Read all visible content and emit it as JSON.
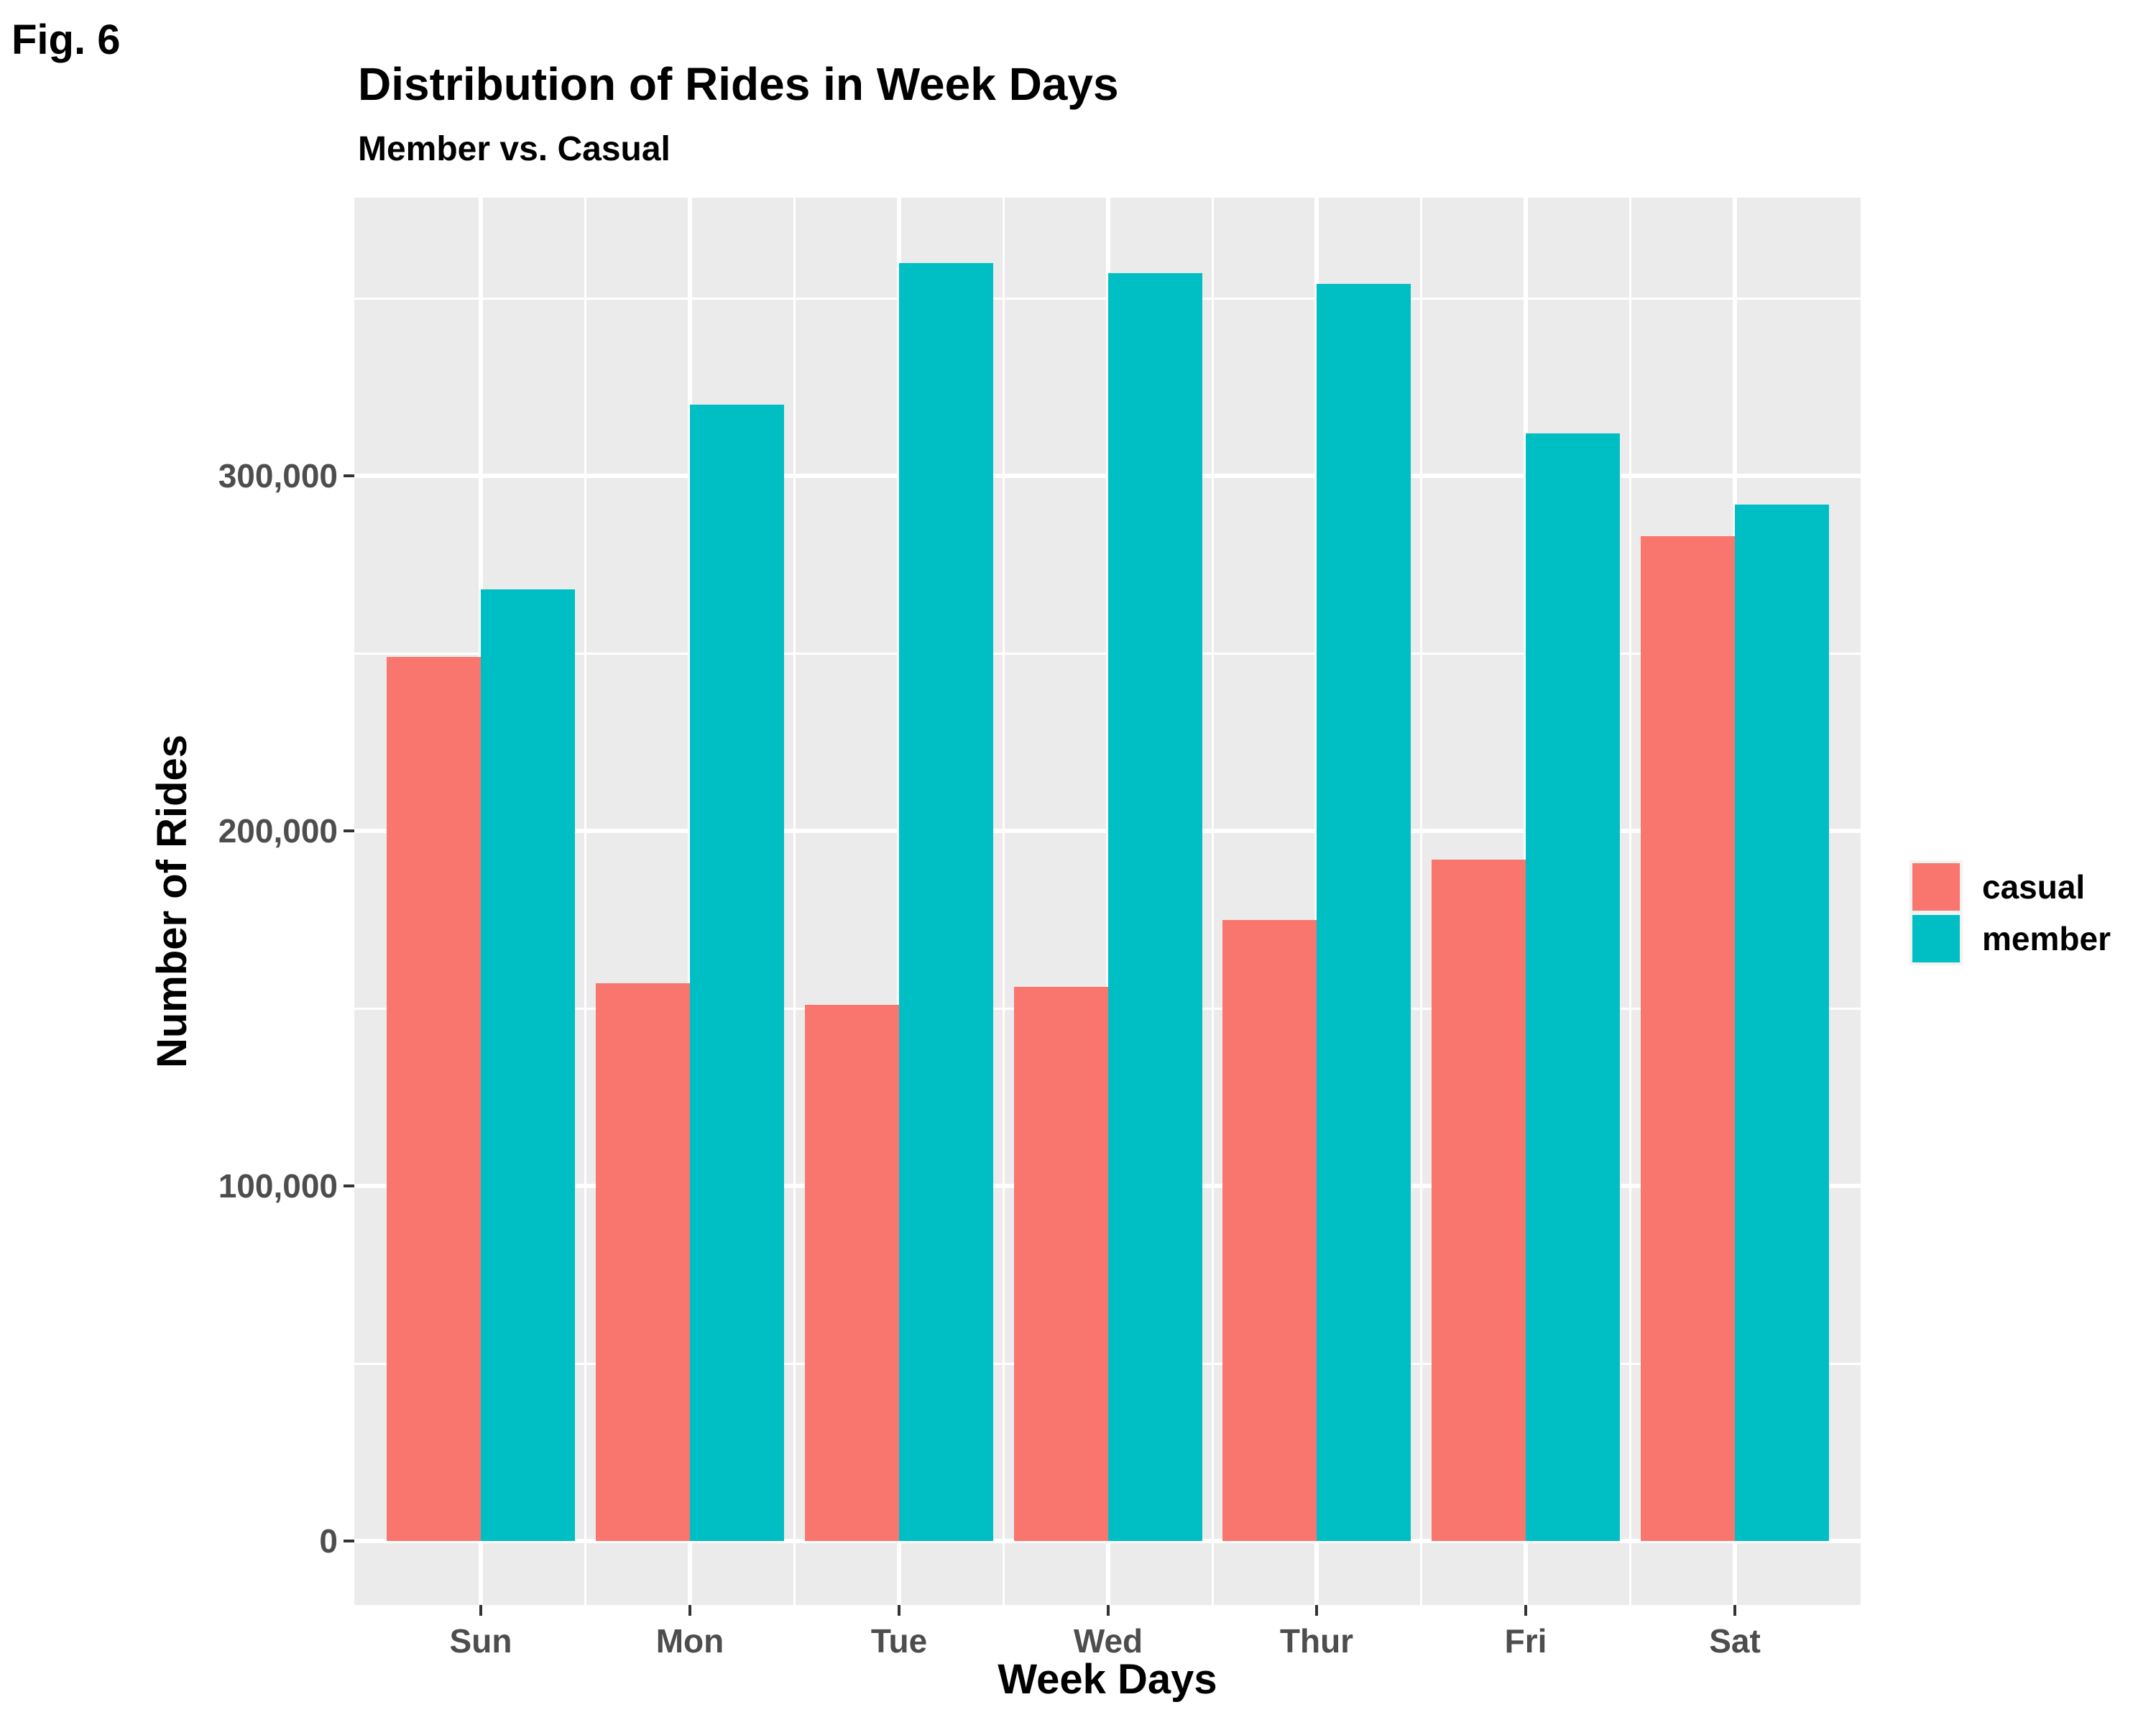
{
  "figure_label": "Fig. 6",
  "chart_data": {
    "type": "bar",
    "mode": "grouped",
    "title": "Distribution of Rides in Week Days",
    "subtitle": "Member vs. Casual",
    "xlabel": "Week Days",
    "ylabel": "Number of Rides",
    "categories": [
      "Sun",
      "Mon",
      "Tue",
      "Wed",
      "Thur",
      "Fri",
      "Sat"
    ],
    "series": [
      {
        "name": "casual",
        "color": "#F8766D",
        "values": [
          249000,
          157000,
          151000,
          156000,
          175000,
          192000,
          283000
        ]
      },
      {
        "name": "member",
        "color": "#00BFC4",
        "values": [
          268000,
          320000,
          360000,
          357000,
          354000,
          312000,
          292000
        ]
      }
    ],
    "y_ticks": [
      {
        "value": 0,
        "label": "0"
      },
      {
        "value": 100000,
        "label": "100,000"
      },
      {
        "value": 200000,
        "label": "200,000"
      },
      {
        "value": 300000,
        "label": "300,000"
      }
    ],
    "y_minor_ticks": [
      50000,
      150000,
      250000,
      350000
    ],
    "ylim": [
      0,
      396000
    ],
    "grid": true,
    "legend_position": "right",
    "panel_background": "#EBEBEB",
    "grid_color": "#FFFFFF",
    "axis_text_color": "#4D4D4D"
  }
}
